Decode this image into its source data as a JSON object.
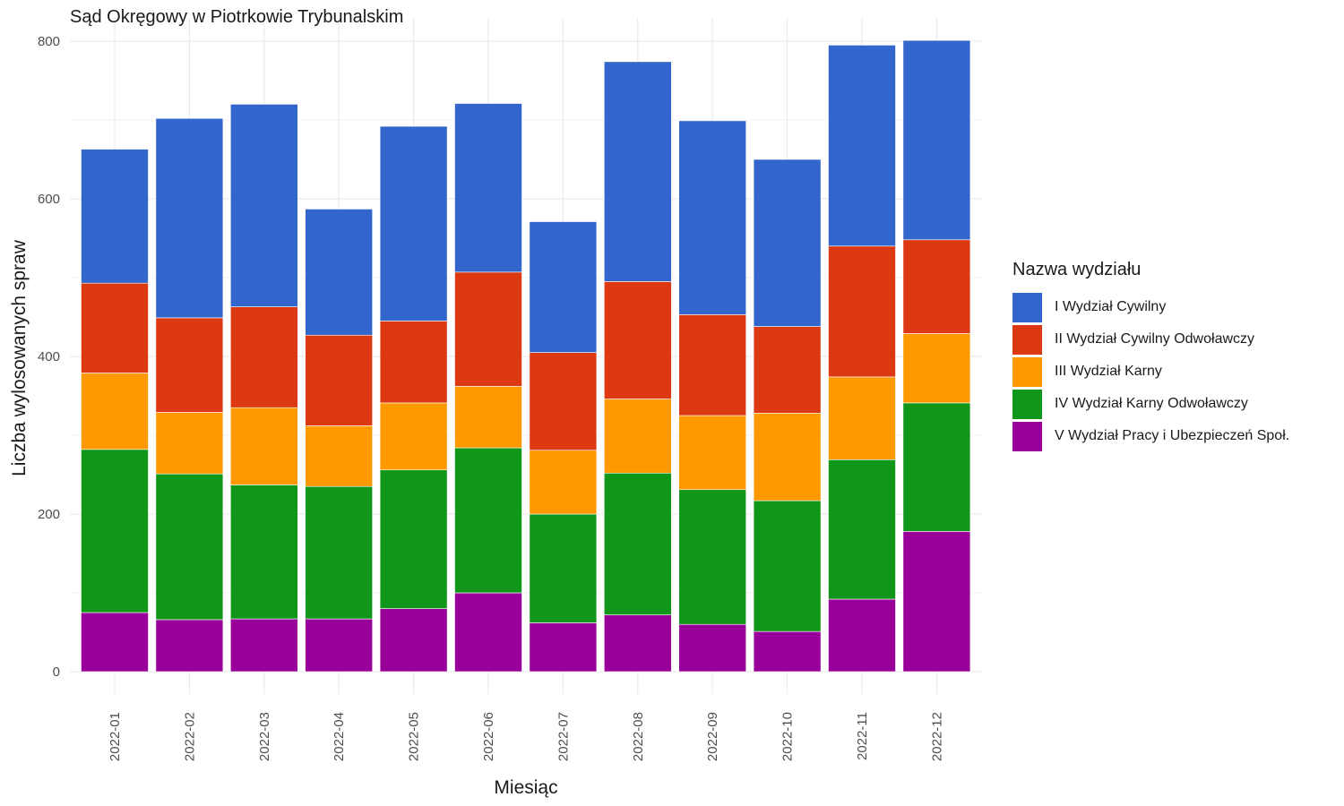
{
  "chart_data": {
    "type": "bar",
    "stacked": true,
    "title": "Sąd Okręgowy w Piotrkowie Trybunalskim",
    "xlabel": "Miesiąc",
    "ylabel": "Liczba wylosowanych spraw",
    "ylim": [
      0,
      800
    ],
    "yticks": [
      0,
      200,
      400,
      600,
      800
    ],
    "grid": true,
    "legend_title": "Nazwa wydziału",
    "legend_position": "right",
    "categories": [
      "2022-01",
      "2022-02",
      "2022-03",
      "2022-04",
      "2022-05",
      "2022-06",
      "2022-07",
      "2022-08",
      "2022-09",
      "2022-10",
      "2022-11",
      "2022-12"
    ],
    "series": [
      {
        "name": "V Wydział Pracy i Ubezpieczeń Społ.",
        "color": "#990099",
        "values": [
          75,
          66,
          67,
          67,
          80,
          100,
          62,
          72,
          60,
          51,
          92,
          178
        ]
      },
      {
        "name": "IV Wydział Karny Odwoławczy",
        "color": "#109618",
        "values": [
          207,
          185,
          170,
          168,
          176,
          184,
          138,
          180,
          171,
          166,
          177,
          163
        ]
      },
      {
        "name": "III Wydział Karny",
        "color": "#FF9900",
        "values": [
          97,
          78,
          98,
          77,
          85,
          78,
          81,
          94,
          94,
          111,
          105,
          88
        ]
      },
      {
        "name": "II Wydział Cywilny Odwoławczy",
        "color": "#DC3912",
        "values": [
          114,
          120,
          128,
          115,
          104,
          145,
          124,
          149,
          128,
          110,
          166,
          119
        ]
      },
      {
        "name": "I Wydział Cywilny",
        "color": "#3366CC",
        "values": [
          170,
          253,
          257,
          160,
          247,
          214,
          166,
          279,
          246,
          212,
          255,
          253
        ]
      }
    ]
  }
}
